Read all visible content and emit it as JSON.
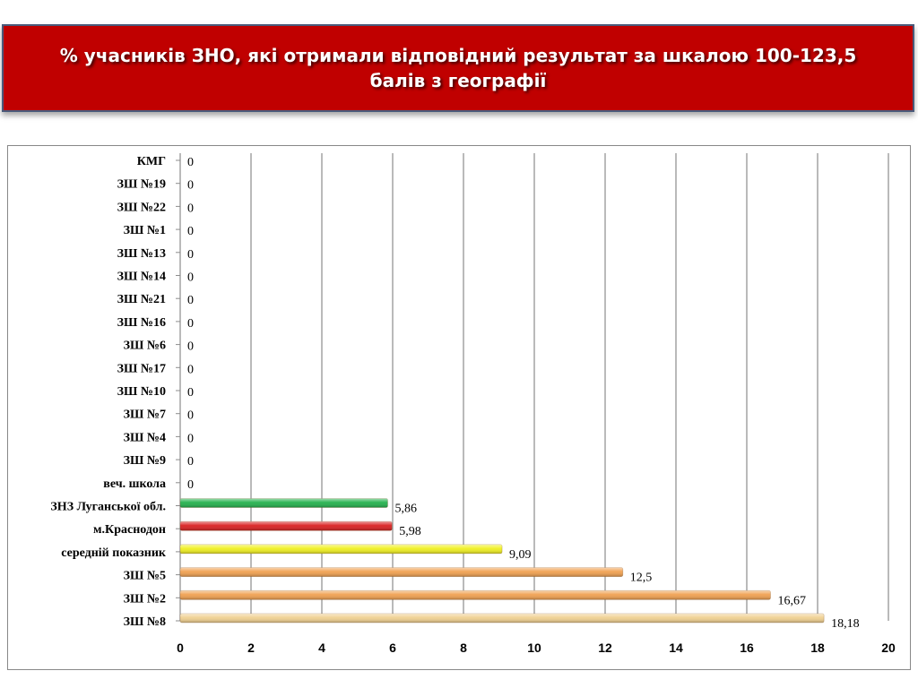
{
  "title": "% учасників ЗНО, які отримали відповідний результат за шкалою 100-123,5 балів з географії",
  "chart_data": {
    "type": "bar",
    "orientation": "horizontal",
    "categories": [
      "КМГ",
      "ЗШ №19",
      "ЗШ №22",
      "ЗШ №1",
      "ЗШ №13",
      "ЗШ №14",
      "ЗШ №21",
      "ЗШ №16",
      "ЗШ №6",
      "ЗШ №17",
      "ЗШ №10",
      "ЗШ №7",
      "ЗШ №4",
      "ЗШ №9",
      "веч. школа",
      "ЗНЗ Луганської обл.",
      "м.Краснодон",
      "середній показник",
      "ЗШ №5",
      "ЗШ №2",
      "ЗШ №8"
    ],
    "values": [
      0,
      0,
      0,
      0,
      0,
      0,
      0,
      0,
      0,
      0,
      0,
      0,
      0,
      0,
      0,
      5.86,
      5.98,
      9.09,
      12.5,
      16.67,
      18.18
    ],
    "value_labels": [
      "0",
      "0",
      "0",
      "0",
      "0",
      "0",
      "0",
      "0",
      "0",
      "0",
      "0",
      "0",
      "0",
      "0",
      "0",
      "5,86",
      "5,98",
      "9,09",
      "12,5",
      "16,67",
      "18,18"
    ],
    "bar_colors": [
      "#f0a050",
      "#f0a050",
      "#f0a050",
      "#f0a050",
      "#f0a050",
      "#f0a050",
      "#f0a050",
      "#f0a050",
      "#f0a050",
      "#f0a050",
      "#f0a050",
      "#f0a050",
      "#f0a050",
      "#f0a050",
      "#f0a050",
      "#22b14c",
      "#d92020",
      "#f0f020",
      "#f0a050",
      "#f0a050",
      "#f0d090"
    ],
    "xlim": [
      0,
      20
    ],
    "xticks": [
      0,
      2,
      4,
      6,
      8,
      10,
      12,
      14,
      16,
      18,
      20
    ],
    "grid": "vertical",
    "legend": "none"
  }
}
